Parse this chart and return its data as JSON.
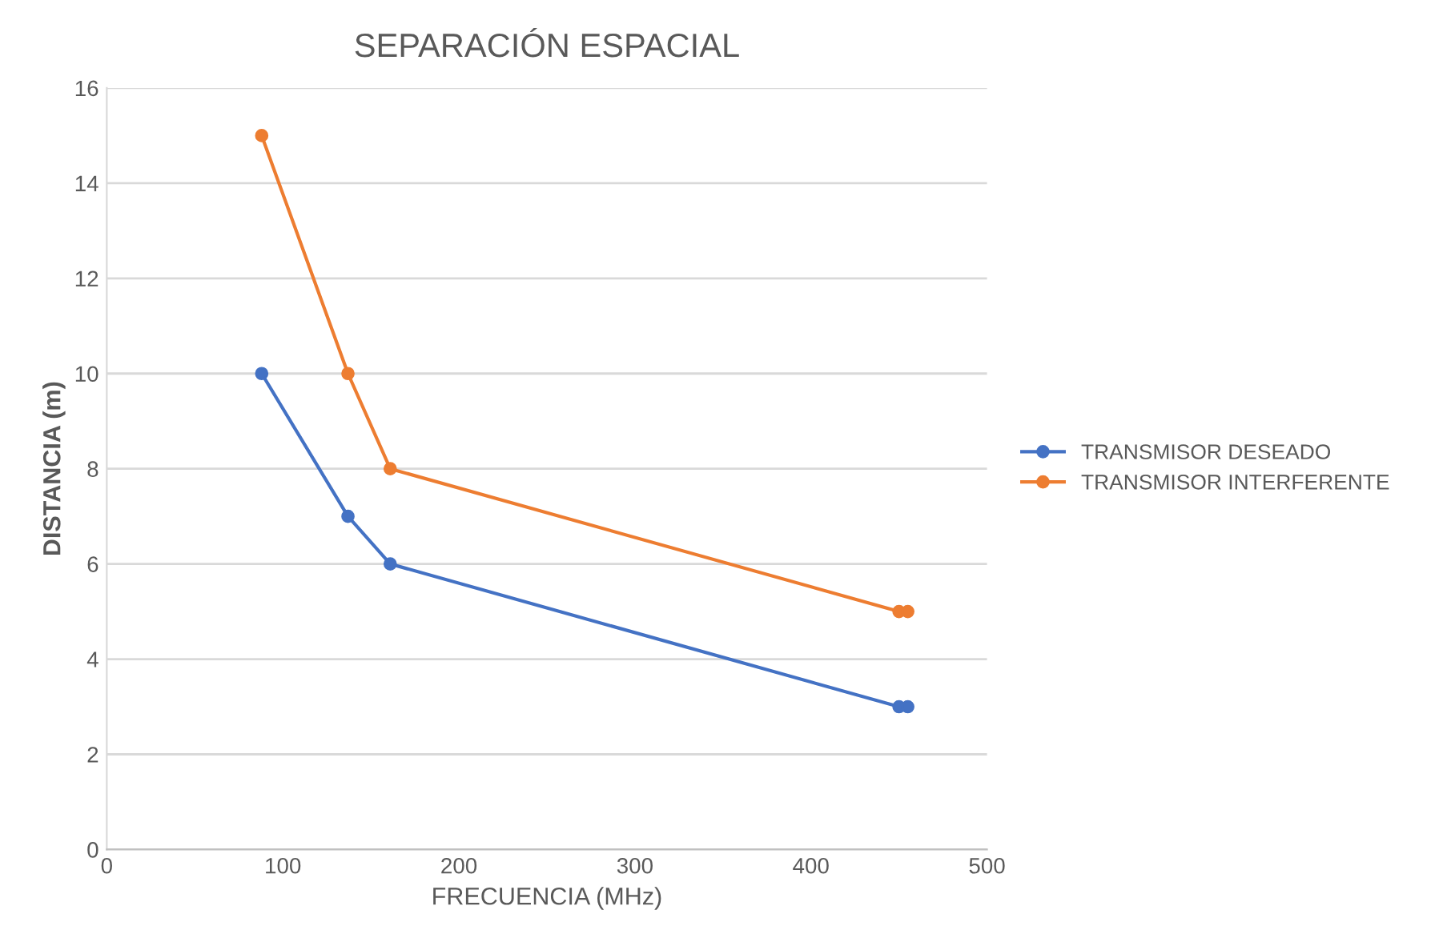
{
  "chart_data": {
    "type": "line",
    "title": "SEPARACIÓN ESPACIAL",
    "xlabel": "FRECUENCIA (MHz)",
    "ylabel": "DISTANCIA (m)",
    "xlim": [
      0,
      500
    ],
    "xticks": [
      0,
      100,
      200,
      300,
      400,
      500
    ],
    "ylim": [
      0,
      16
    ],
    "yticks": [
      0,
      2,
      4,
      6,
      8,
      10,
      12,
      14,
      16
    ],
    "grid": "y",
    "legend": "right",
    "marker": "circle",
    "line_style": "solid",
    "series": [
      {
        "name": "TRANSMISOR DESEADO",
        "color": "#4472c4",
        "x": [
          88,
          137,
          161,
          450,
          455
        ],
        "values": [
          10,
          7,
          6,
          3,
          3
        ]
      },
      {
        "name": "TRANSMISOR INTERFERENTE",
        "color": "#ed7d31",
        "x": [
          88,
          137,
          161,
          450,
          455
        ],
        "values": [
          15,
          10,
          8,
          5,
          5
        ]
      }
    ]
  }
}
